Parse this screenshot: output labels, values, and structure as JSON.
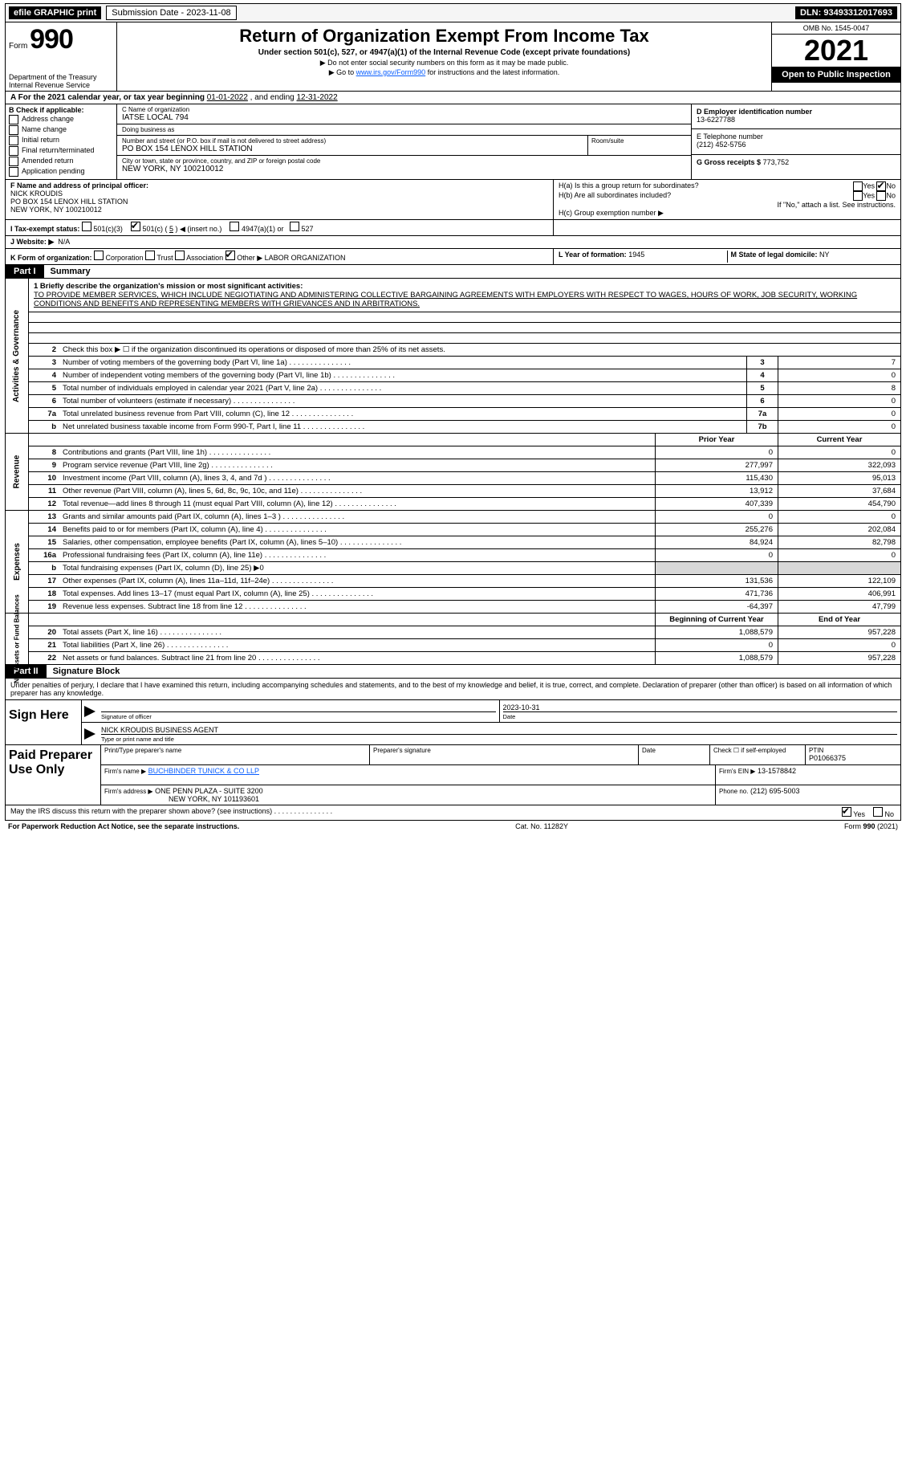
{
  "topbar": {
    "efile": "efile GRAPHIC print",
    "submission_label": "Submission Date - 2023-11-08",
    "dln": "DLN: 93493312017693"
  },
  "header": {
    "form_prefix": "Form",
    "form_number": "990",
    "title": "Return of Organization Exempt From Income Tax",
    "sub1": "Under section 501(c), 527, or 4947(a)(1) of the Internal Revenue Code (except private foundations)",
    "sub2": "▶ Do not enter social security numbers on this form as it may be made public.",
    "sub3_pre": "▶ Go to ",
    "sub3_link": "www.irs.gov/Form990",
    "sub3_post": " for instructions and the latest information.",
    "dept": "Department of the Treasury",
    "irs": "Internal Revenue Service",
    "omb": "OMB No. 1545-0047",
    "year": "2021",
    "open": "Open to Public Inspection"
  },
  "line_a": {
    "text_pre": "A For the 2021 calendar year, or tax year beginning ",
    "begin": "01-01-2022",
    "mid": " , and ending ",
    "end": "12-31-2022"
  },
  "box_b": {
    "label": "B Check if applicable:",
    "items": [
      "Address change",
      "Name change",
      "Initial return",
      "Final return/terminated",
      "Amended return",
      "Application pending"
    ]
  },
  "box_c": {
    "name_label": "C Name of organization",
    "name": "IATSE LOCAL 794",
    "dba_label": "Doing business as",
    "dba": "",
    "street_label": "Number and street (or P.O. box if mail is not delivered to street address)",
    "street": "PO BOX 154 LENOX HILL STATION",
    "room_label": "Room/suite",
    "city_label": "City or town, state or province, country, and ZIP or foreign postal code",
    "city": "NEW YORK, NY  100210012"
  },
  "box_d": {
    "label": "D Employer identification number",
    "val": "13-6227788"
  },
  "box_e": {
    "label": "E Telephone number",
    "val": "(212) 452-5756"
  },
  "box_g": {
    "label": "G Gross receipts $",
    "val": "773,752"
  },
  "box_f": {
    "label": "F Name and address of principal officer:",
    "name": "NICK KROUDIS",
    "addr1": "PO BOX 154 LENOX HILL STATION",
    "addr2": "NEW YORK, NY  100210012"
  },
  "box_h": {
    "ha": "H(a) Is this a group return for subordinates?",
    "hb": "H(b) Are all subordinates included?",
    "hb_note": "If \"No,\" attach a list. See instructions.",
    "hc": "H(c) Group exemption number ▶",
    "yes": "Yes",
    "no": "No"
  },
  "box_i": {
    "label": "I Tax-exempt status:",
    "c3": "501(c)(3)",
    "c_other_pre": "501(c) ( ",
    "c_other_num": "5",
    "c_other_post": " ) ◀ (insert no.)",
    "a1": "4947(a)(1) or",
    "527": "527"
  },
  "box_j": {
    "label": "J Website: ▶",
    "val": "N/A"
  },
  "box_k": {
    "label": "K Form of organization:",
    "opts": [
      "Corporation",
      "Trust",
      "Association"
    ],
    "other_label": "Other ▶",
    "other_val": "LABOR ORGANIZATION"
  },
  "box_l": {
    "label": "L Year of formation:",
    "val": "1945"
  },
  "box_m": {
    "label": "M State of legal domicile:",
    "val": "NY"
  },
  "part1": {
    "pill": "Part I",
    "title": "Summary"
  },
  "summary": {
    "sec1_label": "Activities & Governance",
    "mission_label": "1 Briefly describe the organization's mission or most significant activities:",
    "mission": "TO PROVIDE MEMBER SERVICES, WHICH INCLUDE NEGIOTIATING AND ADMINISTERING COLLECTIVE BARGAINING AGREEMENTS WITH EMPLOYERS WITH RESPECT TO WAGES, HOURS OF WORK, JOB SECURITY, WORKING CONDITIONS AND BENEFITS AND REPRESENTING MEMBERS WITH GRIEVANCES AND IN ARBITRATIONS.",
    "line2": "Check this box ▶ ☐ if the organization discontinued its operations or disposed of more than 25% of its net assets.",
    "rows_gov": [
      {
        "n": "3",
        "t": "Number of voting members of the governing body (Part VI, line 1a)",
        "box": "3",
        "v": "7"
      },
      {
        "n": "4",
        "t": "Number of independent voting members of the governing body (Part VI, line 1b)",
        "box": "4",
        "v": "0"
      },
      {
        "n": "5",
        "t": "Total number of individuals employed in calendar year 2021 (Part V, line 2a)",
        "box": "5",
        "v": "8"
      },
      {
        "n": "6",
        "t": "Total number of volunteers (estimate if necessary)",
        "box": "6",
        "v": "0"
      },
      {
        "n": "7a",
        "t": "Total unrelated business revenue from Part VIII, column (C), line 12",
        "box": "7a",
        "v": "0"
      },
      {
        "n": "b",
        "t": "Net unrelated business taxable income from Form 990-T, Part I, line 11",
        "box": "7b",
        "v": "0"
      }
    ],
    "sec2_label": "Revenue",
    "prior_label": "Prior Year",
    "current_label": "Current Year",
    "rows_rev": [
      {
        "n": "8",
        "t": "Contributions and grants (Part VIII, line 1h)",
        "p": "0",
        "c": "0"
      },
      {
        "n": "9",
        "t": "Program service revenue (Part VIII, line 2g)",
        "p": "277,997",
        "c": "322,093"
      },
      {
        "n": "10",
        "t": "Investment income (Part VIII, column (A), lines 3, 4, and 7d )",
        "p": "115,430",
        "c": "95,013"
      },
      {
        "n": "11",
        "t": "Other revenue (Part VIII, column (A), lines 5, 6d, 8c, 9c, 10c, and 11e)",
        "p": "13,912",
        "c": "37,684"
      },
      {
        "n": "12",
        "t": "Total revenue—add lines 8 through 11 (must equal Part VIII, column (A), line 12)",
        "p": "407,339",
        "c": "454,790"
      }
    ],
    "sec3_label": "Expenses",
    "rows_exp": [
      {
        "n": "13",
        "t": "Grants and similar amounts paid (Part IX, column (A), lines 1–3 )",
        "p": "0",
        "c": "0"
      },
      {
        "n": "14",
        "t": "Benefits paid to or for members (Part IX, column (A), line 4)",
        "p": "255,276",
        "c": "202,084"
      },
      {
        "n": "15",
        "t": "Salaries, other compensation, employee benefits (Part IX, column (A), lines 5–10)",
        "p": "84,924",
        "c": "82,798"
      },
      {
        "n": "16a",
        "t": "Professional fundraising fees (Part IX, column (A), line 11e)",
        "p": "0",
        "c": "0"
      },
      {
        "n": "b",
        "t": "Total fundraising expenses (Part IX, column (D), line 25) ▶0",
        "p": "",
        "c": ""
      },
      {
        "n": "17",
        "t": "Other expenses (Part IX, column (A), lines 11a–11d, 11f–24e)",
        "p": "131,536",
        "c": "122,109"
      },
      {
        "n": "18",
        "t": "Total expenses. Add lines 13–17 (must equal Part IX, column (A), line 25)",
        "p": "471,736",
        "c": "406,991"
      },
      {
        "n": "19",
        "t": "Revenue less expenses. Subtract line 18 from line 12",
        "p": "-64,397",
        "c": "47,799"
      }
    ],
    "sec4_label": "Net Assets or Fund Balances",
    "begin_label": "Beginning of Current Year",
    "end_label": "End of Year",
    "rows_net": [
      {
        "n": "20",
        "t": "Total assets (Part X, line 16)",
        "p": "1,088,579",
        "c": "957,228"
      },
      {
        "n": "21",
        "t": "Total liabilities (Part X, line 26)",
        "p": "0",
        "c": "0"
      },
      {
        "n": "22",
        "t": "Net assets or fund balances. Subtract line 21 from line 20",
        "p": "1,088,579",
        "c": "957,228"
      }
    ]
  },
  "part2": {
    "pill": "Part II",
    "title": "Signature Block",
    "intro": "Under penalties of perjury, I declare that I have examined this return, including accompanying schedules and statements, and to the best of my knowledge and belief, it is true, correct, and complete. Declaration of preparer (other than officer) is based on all information of which preparer has any knowledge."
  },
  "sign": {
    "left": "Sign Here",
    "sig_label": "Signature of officer",
    "date_label": "Date",
    "date": "2023-10-31",
    "name": "NICK KROUDIS  BUSINESS AGENT",
    "name_label": "Type or print name and title"
  },
  "paid": {
    "left": "Paid Preparer Use Only",
    "r1": {
      "c1_lbl": "Print/Type preparer's name",
      "c1": "",
      "c2_lbl": "Preparer's signature",
      "c2": "",
      "c3_lbl": "Date",
      "c3": "",
      "c4_lbl": "Check ☐ if self-employed",
      "c5_lbl": "PTIN",
      "c5": "P01066375"
    },
    "r2": {
      "lbl": "Firm's name ▶",
      "val": "BUCHBINDER TUNICK & CO LLP",
      "ein_lbl": "Firm's EIN ▶",
      "ein": "13-1578842"
    },
    "r3": {
      "lbl": "Firm's address ▶",
      "val1": "ONE PENN PLAZA - SUITE 3200",
      "val2": "NEW YORK, NY  101193601",
      "ph_lbl": "Phone no.",
      "ph": "(212) 695-5003"
    }
  },
  "may_discuss": {
    "text": "May the IRS discuss this return with the preparer shown above? (see instructions)",
    "yes": "Yes",
    "no": "No"
  },
  "footer": {
    "left": "For Paperwork Reduction Act Notice, see the separate instructions.",
    "mid": "Cat. No. 11282Y",
    "right": "Form 990 (2021)"
  }
}
